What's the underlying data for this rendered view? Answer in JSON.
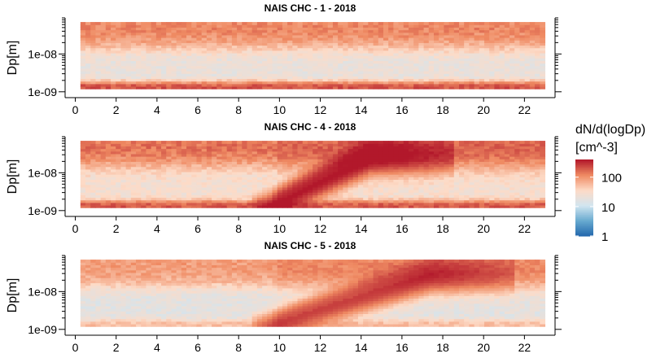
{
  "chart_data": {
    "type": "heatmap",
    "x_ticks": [
      0,
      2,
      4,
      6,
      8,
      10,
      12,
      14,
      16,
      18,
      20,
      22
    ],
    "x_range": [
      -0.5,
      23.5
    ],
    "y_label": "Dp[m]",
    "y_scale": "log",
    "y_ticks": [
      {
        "value": 1e-08,
        "label": "1e-08"
      },
      {
        "value": 1e-09,
        "label": "1e-09"
      }
    ],
    "y_range": [
      7e-10,
      9e-08
    ],
    "data_y_range": [
      1.2e-09,
      7e-08
    ],
    "data_x_range": [
      0.25,
      23.0
    ],
    "colorbar": {
      "title": "dN/d(logDp)",
      "unit": "[cm^-3]",
      "scale": "log",
      "ticks": [
        {
          "value": 1,
          "label": "1"
        },
        {
          "value": 10,
          "label": "10"
        },
        {
          "value": 100,
          "label": "100"
        }
      ],
      "range": [
        1,
        400
      ],
      "colors": [
        "#2166ac",
        "#67a9cf",
        "#d1e5f0",
        "#fddbc7",
        "#ef8a62",
        "#b2182b"
      ]
    },
    "panels": [
      {
        "title": "NAIS CHC - 1 - 2018",
        "event": false,
        "description_levels": {
          "upper_band": 120,
          "middle_band": 4,
          "low_band": 200
        }
      },
      {
        "title": "NAIS CHC - 4 - 2018",
        "event": true,
        "description_levels": {
          "upper_band": 150,
          "middle_band": 7,
          "low_band": 180
        },
        "growth_start_hour": 9.5,
        "growth_end_hour": 14.5
      },
      {
        "title": "NAIS CHC - 5 - 2018",
        "event": true,
        "description_levels": {
          "upper_band": 90,
          "middle_band": 5,
          "low_band": 40
        },
        "growth_start_hour": 9.5,
        "growth_end_hour": 17.5
      }
    ]
  }
}
